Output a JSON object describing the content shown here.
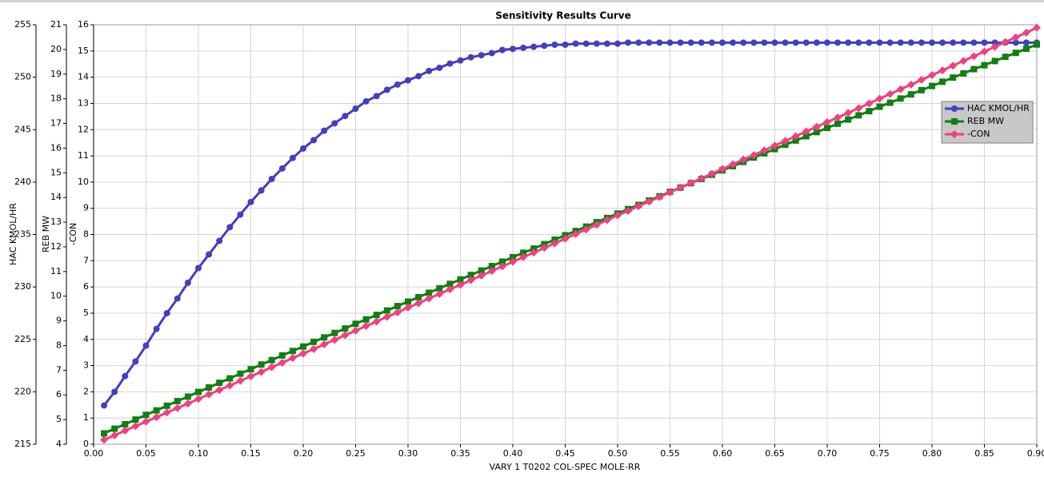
{
  "chart_data": {
    "type": "line",
    "title": "Sensitivity Results Curve",
    "x_label": "VARY   1 T0202 COL-SPEC MOLE-RR",
    "y_label": "HAC KMOL/HR",
    "y2_label": "REB MW",
    "y3_label": "-CON",
    "grid": true,
    "legend": "upper right",
    "xlim": [
      0,
      0.9
    ],
    "xticks": [
      {
        "value": 0,
        "label": "0.00"
      },
      {
        "value": 0.05,
        "label": "0.05"
      },
      {
        "value": 0.1,
        "label": "0.10"
      },
      {
        "value": 0.15,
        "label": "0.15"
      },
      {
        "value": 0.2,
        "label": "0.20"
      },
      {
        "value": 0.25,
        "label": "0.25"
      },
      {
        "value": 0.3,
        "label": "0.30"
      },
      {
        "value": 0.35,
        "label": "0.35"
      },
      {
        "value": 0.4,
        "label": "0.40"
      },
      {
        "value": 0.45,
        "label": "0.45"
      },
      {
        "value": 0.5,
        "label": "0.50"
      },
      {
        "value": 0.55,
        "label": "0.55"
      },
      {
        "value": 0.6,
        "label": "0.60"
      },
      {
        "value": 0.65,
        "label": "0.65"
      },
      {
        "value": 0.7,
        "label": "0.70"
      },
      {
        "value": 0.75,
        "label": "0.75"
      },
      {
        "value": 0.8,
        "label": "0.80"
      },
      {
        "value": 0.85,
        "label": "0.85"
      },
      {
        "value": 0.9,
        "label": "0.90"
      }
    ],
    "ylim": [
      215,
      255
    ],
    "yticks": [
      215,
      220,
      225,
      230,
      235,
      240,
      245,
      250,
      255
    ],
    "y2lim": [
      4,
      21
    ],
    "y2ticks": [
      4,
      5,
      6,
      7,
      8,
      9,
      10,
      11,
      12,
      13,
      14,
      15,
      16,
      17,
      18,
      19,
      20,
      21
    ],
    "y3lim": [
      0,
      16
    ],
    "y3ticks": [
      0,
      1,
      2,
      3,
      4,
      5,
      6,
      7,
      8,
      9,
      10,
      11,
      12,
      13,
      14,
      15,
      16
    ],
    "x": [
      0.01,
      0.02,
      0.03,
      0.04,
      0.05,
      0.06,
      0.07,
      0.08,
      0.09,
      0.1,
      0.11,
      0.12,
      0.13,
      0.14,
      0.15,
      0.16,
      0.17,
      0.18,
      0.19,
      0.2,
      0.21,
      0.22,
      0.23,
      0.24,
      0.25,
      0.26,
      0.27,
      0.28,
      0.29,
      0.3,
      0.31,
      0.32,
      0.33,
      0.34,
      0.35,
      0.36,
      0.37,
      0.38,
      0.39,
      0.4,
      0.41,
      0.42,
      0.43,
      0.44,
      0.45,
      0.46,
      0.47,
      0.48,
      0.49,
      0.5,
      0.51,
      0.52,
      0.53,
      0.54,
      0.55,
      0.56,
      0.57,
      0.58,
      0.59,
      0.6,
      0.61,
      0.62,
      0.63,
      0.64,
      0.65,
      0.66,
      0.67,
      0.68,
      0.69,
      0.7,
      0.71,
      0.72,
      0.73,
      0.74,
      0.75,
      0.76,
      0.77,
      0.78,
      0.79,
      0.8,
      0.81,
      0.82,
      0.83,
      0.84,
      0.85,
      0.86,
      0.87,
      0.88,
      0.89,
      0.9
    ],
    "series": [
      {
        "name": "HAC KMOL/HR",
        "color": "#4040c0",
        "marker": "circle",
        "axis": "y",
        "values": [
          218.7,
          220.0,
          221.5,
          222.9,
          224.4,
          226.0,
          227.5,
          228.9,
          230.4,
          231.8,
          233.1,
          234.4,
          235.7,
          236.9,
          238.1,
          239.2,
          240.3,
          241.3,
          242.3,
          243.2,
          244.0,
          244.9,
          245.6,
          246.3,
          247.0,
          247.7,
          248.2,
          248.8,
          249.3,
          249.7,
          250.1,
          250.6,
          250.9,
          251.3,
          251.6,
          251.9,
          252.1,
          252.3,
          252.6,
          252.7,
          252.8,
          252.9,
          253.0,
          253.1,
          253.1,
          253.2,
          253.2,
          253.2,
          253.2,
          253.2,
          253.3,
          253.3,
          253.3,
          253.3,
          253.3,
          253.3,
          253.3,
          253.3,
          253.3,
          253.3,
          253.3,
          253.3,
          253.3,
          253.3,
          253.3,
          253.3,
          253.3,
          253.3,
          253.3,
          253.3,
          253.3,
          253.3,
          253.3,
          253.3,
          253.3,
          253.3,
          253.3,
          253.3,
          253.3,
          253.3,
          253.3,
          253.3,
          253.3,
          253.3,
          253.3,
          253.3,
          253.3,
          253.3,
          253.3,
          253.3
        ]
      },
      {
        "name": "REB MW",
        "color": "#108010",
        "marker": "square",
        "axis": "y2",
        "values": [
          4.44,
          4.63,
          4.81,
          5.0,
          5.19,
          5.37,
          5.56,
          5.75,
          5.93,
          6.12,
          6.3,
          6.49,
          6.67,
          6.86,
          7.04,
          7.23,
          7.41,
          7.6,
          7.78,
          7.96,
          8.15,
          8.33,
          8.51,
          8.69,
          8.88,
          9.06,
          9.24,
          9.42,
          9.6,
          9.78,
          9.96,
          10.14,
          10.32,
          10.5,
          10.68,
          10.86,
          11.04,
          11.22,
          11.4,
          11.58,
          11.76,
          11.93,
          12.11,
          12.29,
          12.47,
          12.64,
          12.82,
          13.0,
          13.17,
          13.35,
          13.53,
          13.7,
          13.88,
          14.05,
          14.23,
          14.4,
          14.58,
          14.75,
          14.92,
          15.1,
          15.27,
          15.44,
          15.62,
          15.79,
          15.96,
          16.14,
          16.31,
          16.48,
          16.65,
          16.82,
          16.99,
          17.16,
          17.33,
          17.5,
          17.68,
          17.84,
          18.01,
          18.18,
          18.35,
          18.52,
          18.69,
          18.86,
          19.03,
          19.2,
          19.36,
          19.53,
          19.7,
          19.86,
          20.03,
          20.2
        ]
      },
      {
        "name": "-CON",
        "color": "#f04080",
        "marker": "diamond",
        "axis": "y3",
        "values": [
          0.17,
          0.34,
          0.52,
          0.69,
          0.86,
          1.03,
          1.21,
          1.38,
          1.55,
          1.73,
          1.9,
          2.07,
          2.24,
          2.42,
          2.59,
          2.76,
          2.94,
          3.11,
          3.29,
          3.46,
          3.63,
          3.81,
          3.98,
          4.16,
          4.33,
          4.51,
          4.68,
          4.86,
          5.03,
          5.21,
          5.38,
          5.56,
          5.73,
          5.91,
          6.08,
          6.26,
          6.43,
          6.61,
          6.78,
          6.96,
          7.14,
          7.31,
          7.49,
          7.66,
          7.84,
          8.02,
          8.19,
          8.37,
          8.55,
          8.73,
          8.9,
          9.08,
          9.26,
          9.43,
          9.61,
          9.79,
          9.97,
          10.14,
          10.32,
          10.5,
          10.68,
          10.86,
          11.03,
          11.21,
          11.39,
          11.57,
          11.75,
          11.93,
          12.11,
          12.29,
          12.46,
          12.64,
          12.82,
          13.0,
          13.18,
          13.36,
          13.54,
          13.72,
          13.9,
          14.08,
          14.26,
          14.44,
          14.62,
          14.8,
          14.98,
          15.16,
          15.34,
          15.52,
          15.7,
          15.89
        ]
      }
    ]
  }
}
